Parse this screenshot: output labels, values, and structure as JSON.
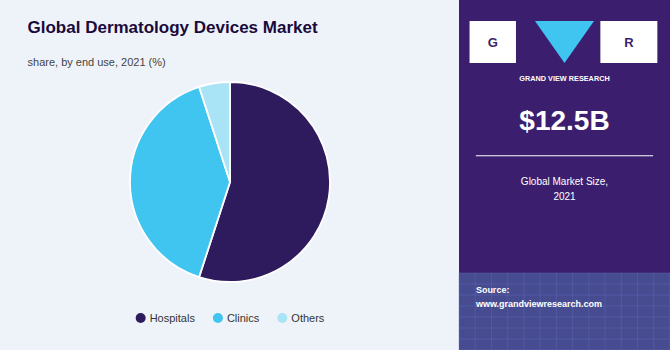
{
  "chart_data": {
    "type": "pie",
    "title": "Global Dermatology Devices Market",
    "subtitle": "share, by end use, 2021 (%)",
    "categories": [
      "Hospitals",
      "Clinics",
      "Others"
    ],
    "values": [
      55,
      40,
      5
    ],
    "colors": [
      "#2d1b5e",
      "#40c4f0",
      "#a8e4f5"
    ],
    "legend": "bottom",
    "annotations": [
      "$12.5B",
      "Global Market Size,\n2021",
      "Source:\nwww.grandviewresearch.com",
      "GRAND VIEW RESEARCH",
      "G",
      "R"
    ]
  }
}
